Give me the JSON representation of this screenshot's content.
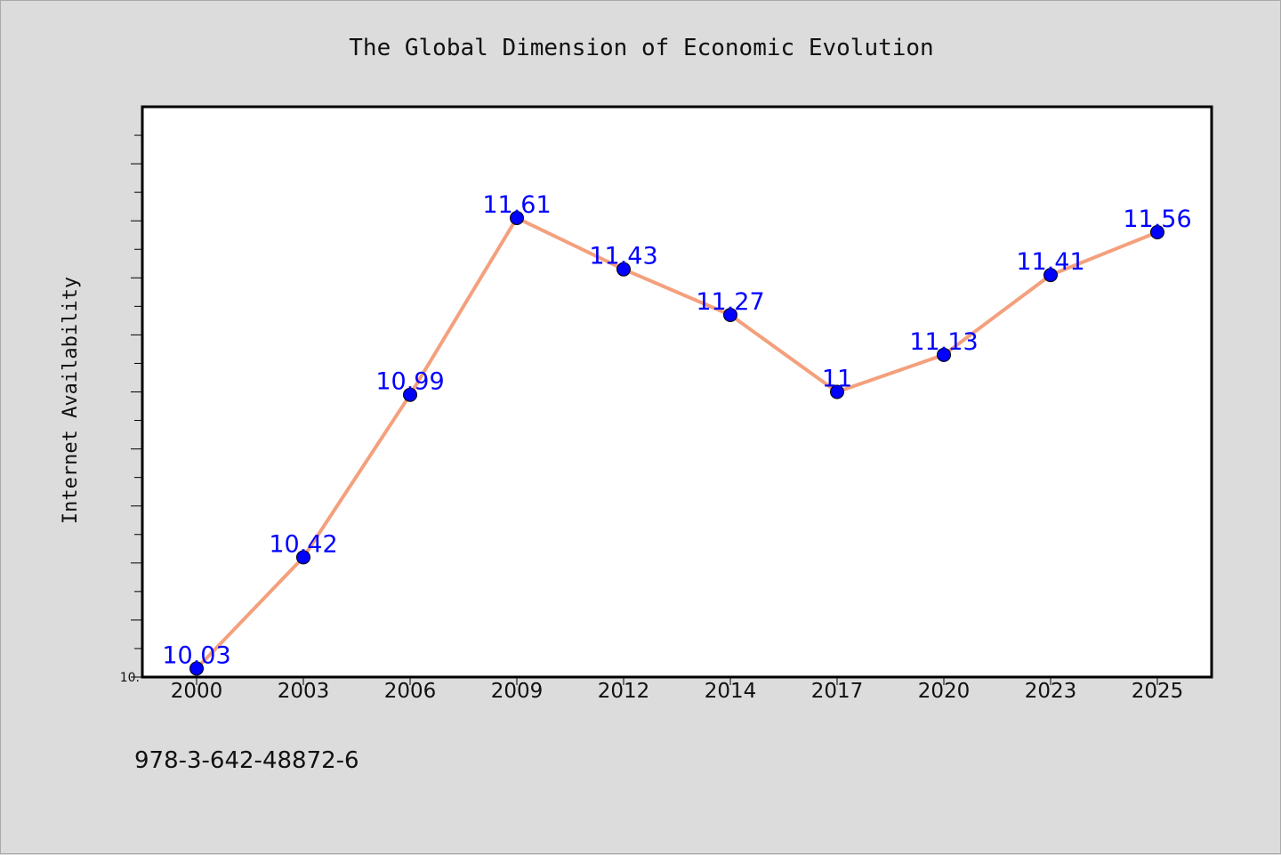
{
  "chart_data": {
    "type": "line",
    "title": "The Global Dimension of Economic Evolution",
    "xlabel": "",
    "ylabel": "Internet Availability",
    "categories": [
      "2000",
      "2003",
      "2006",
      "2009",
      "2012",
      "2014",
      "2017",
      "2020",
      "2023",
      "2025"
    ],
    "series": [
      {
        "values": [
          10.03,
          10.42,
          10.99,
          11.61,
          11.43,
          11.27,
          11.0,
          11.13,
          11.41,
          11.56
        ],
        "labels": [
          "10.03",
          "10.42",
          "10.99",
          "11.61",
          "11.43",
          "11.27",
          "11",
          "11.13",
          "11.41",
          "11.56"
        ]
      }
    ],
    "ylim": [
      10.0,
      12.0
    ],
    "y_tick_label": "10.",
    "grid": false,
    "legend": "none",
    "colors": {
      "line": "#f4a07d",
      "marker": "#0000ff",
      "data_label": "#0000ff",
      "plot_background": "#ffffff",
      "page_background": "#dcdcdc"
    }
  },
  "footer": {
    "code": "978-3-642-48872-6"
  }
}
